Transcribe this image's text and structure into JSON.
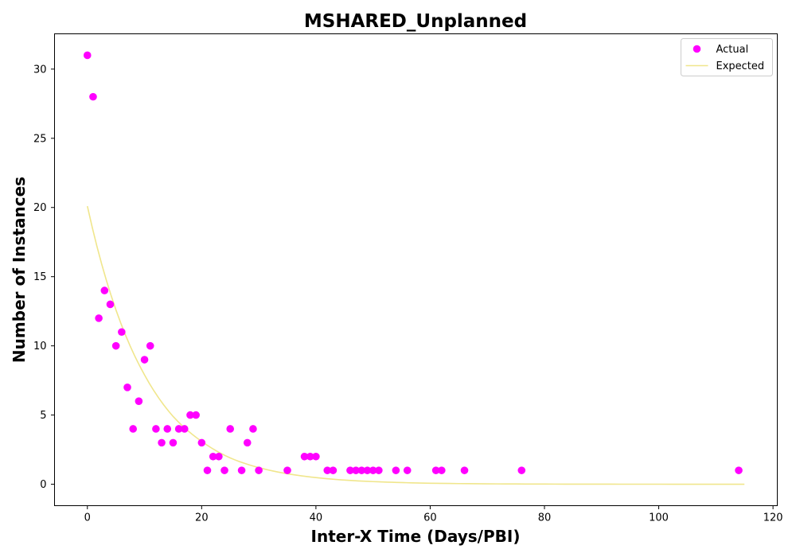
{
  "chart_data": {
    "type": "scatter",
    "title": "MSHARED_Unplanned",
    "xlabel": "Inter-X Time (Days/PBI)",
    "ylabel": "Number of Instances",
    "xlim": [
      -5.75,
      120.75
    ],
    "ylim": [
      -1.55,
      32.55
    ],
    "x_ticks": [
      0,
      20,
      40,
      60,
      80,
      100,
      120
    ],
    "y_ticks": [
      0,
      5,
      10,
      15,
      20,
      25,
      30
    ],
    "grid": false,
    "legend_position": "top-right",
    "series": [
      {
        "name": "Actual",
        "kind": "scatter",
        "color": "#ff00ff",
        "points": [
          [
            0,
            31
          ],
          [
            1,
            28
          ],
          [
            2,
            12
          ],
          [
            3,
            14
          ],
          [
            4,
            13
          ],
          [
            5,
            10
          ],
          [
            6,
            11
          ],
          [
            7,
            7
          ],
          [
            8,
            4
          ],
          [
            9,
            6
          ],
          [
            10,
            9
          ],
          [
            11,
            10
          ],
          [
            12,
            4
          ],
          [
            13,
            3
          ],
          [
            14,
            4
          ],
          [
            15,
            3
          ],
          [
            16,
            4
          ],
          [
            17,
            4
          ],
          [
            18,
            5
          ],
          [
            19,
            5
          ],
          [
            20,
            3
          ],
          [
            21,
            1
          ],
          [
            22,
            2
          ],
          [
            23,
            2
          ],
          [
            24,
            1
          ],
          [
            25,
            4
          ],
          [
            27,
            1
          ],
          [
            28,
            3
          ],
          [
            29,
            4
          ],
          [
            30,
            1
          ],
          [
            35,
            1
          ],
          [
            38,
            2
          ],
          [
            39,
            2
          ],
          [
            40,
            2
          ],
          [
            42,
            1
          ],
          [
            43,
            1
          ],
          [
            46,
            1
          ],
          [
            47,
            1
          ],
          [
            48,
            1
          ],
          [
            49,
            1
          ],
          [
            50,
            1
          ],
          [
            51,
            1
          ],
          [
            54,
            1
          ],
          [
            56,
            1
          ],
          [
            61,
            1
          ],
          [
            62,
            1
          ],
          [
            66,
            1
          ],
          [
            76,
            1
          ],
          [
            114,
            1
          ]
        ]
      },
      {
        "name": "Expected",
        "kind": "line",
        "color": "#f0e68c",
        "points": [
          [
            0,
            20.1
          ],
          [
            5,
            12.6
          ],
          [
            10,
            7.9
          ],
          [
            15,
            4.9
          ],
          [
            20,
            3.1
          ],
          [
            25,
            1.9
          ],
          [
            30,
            1.2
          ],
          [
            35,
            0.76
          ],
          [
            40,
            0.48
          ],
          [
            45,
            0.3
          ],
          [
            50,
            0.19
          ],
          [
            55,
            0.12
          ],
          [
            60,
            0.073
          ],
          [
            70,
            0.029
          ],
          [
            80,
            0.011
          ],
          [
            90,
            0.0045
          ],
          [
            100,
            0.0018
          ],
          [
            115,
            0.0004
          ]
        ]
      }
    ]
  }
}
